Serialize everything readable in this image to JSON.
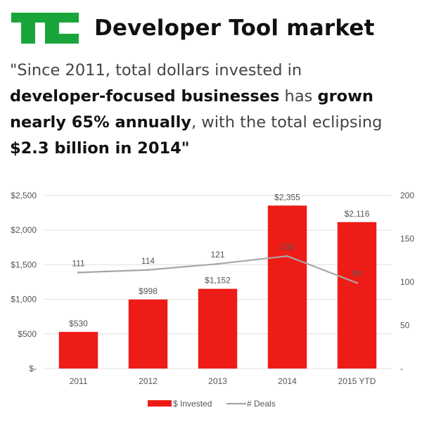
{
  "header": {
    "logo_text": "TC",
    "title": "Developer Tool market"
  },
  "quote": {
    "line1": [
      {
        "text": "\"Since 2011, total dollars invested in",
        "bold": false
      }
    ],
    "line2": [
      {
        "text": "developer-focused businesses",
        "bold": true
      },
      {
        "text": " has ",
        "bold": false
      },
      {
        "text": "grown",
        "bold": true
      }
    ],
    "line3": [
      {
        "text": "nearly 65% annually",
        "bold": true
      },
      {
        "text": ", with the total eclipsing",
        "bold": false
      }
    ],
    "line4": [
      {
        "text": "$2.3 billion in 2014\"",
        "bold": true
      }
    ]
  },
  "colors": {
    "logo_green": "#1aa53a",
    "bar_red": "#ee1c17",
    "line_gray": "#a6a6a6",
    "grid": "#e0e0e0"
  },
  "chart_data": {
    "type": "bar",
    "categories": [
      "2011",
      "2012",
      "2013",
      "2014",
      "2015 YTD"
    ],
    "series": [
      {
        "name": "$ Invested",
        "type": "bar",
        "axis": "left",
        "values": [
          530,
          998,
          1152,
          2355,
          2116
        ],
        "labels": [
          "$530",
          "$998",
          "$1,152",
          "$2,355",
          "$2,116"
        ]
      },
      {
        "name": "# Deals",
        "type": "line",
        "axis": "right",
        "values": [
          111,
          114,
          121,
          130,
          99
        ],
        "labels": [
          "111",
          "114",
          "121",
          "130",
          "99"
        ]
      }
    ],
    "y_left": {
      "range": [
        0,
        2500
      ],
      "ticks": [
        0,
        500,
        1000,
        1500,
        2000,
        2500
      ],
      "tick_labels": [
        "$-",
        "$500",
        "$1,000",
        "$1,500",
        "$2,000",
        "$2,500"
      ]
    },
    "y_right": {
      "range": [
        0,
        200
      ],
      "ticks": [
        0,
        50,
        100,
        150,
        200
      ],
      "tick_labels": [
        "-",
        "50",
        "100",
        "150",
        "200"
      ]
    },
    "grid": true,
    "legend": "bottom"
  }
}
